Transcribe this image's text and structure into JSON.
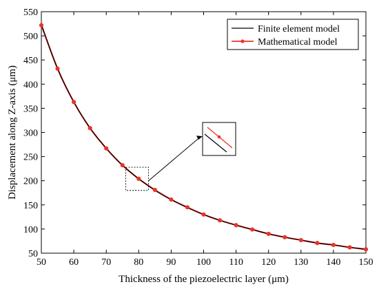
{
  "chart_data": {
    "type": "line",
    "xlabel": "Thickness of the piezoelectric layer (μm)",
    "ylabel": "Displacement along Z-axis (μm)",
    "xlim": [
      50,
      150
    ],
    "ylim": [
      50,
      550
    ],
    "xticks": [
      50,
      60,
      70,
      80,
      90,
      100,
      110,
      120,
      130,
      140,
      150
    ],
    "yticks": [
      50,
      100,
      150,
      200,
      250,
      300,
      350,
      400,
      450,
      500,
      550
    ],
    "grid": false,
    "legend_position": "top-right",
    "series": [
      {
        "name": "Finite element model",
        "color": "#000000",
        "marker": "none",
        "x": [
          50,
          55,
          60,
          65,
          70,
          75,
          80,
          85,
          90,
          95,
          100,
          105,
          110,
          115,
          120,
          125,
          130,
          135,
          140,
          145,
          150
        ],
        "values": [
          524,
          432,
          363,
          309,
          267,
          232,
          204,
          180,
          161,
          144,
          130,
          118,
          108,
          99,
          90,
          83,
          77,
          71,
          67,
          62,
          58
        ]
      },
      {
        "name": "Mathematical model",
        "color": "#e8342a",
        "marker": "circle",
        "x": [
          50,
          55,
          60,
          65,
          70,
          75,
          80,
          85,
          90,
          95,
          100,
          105,
          110,
          115,
          120,
          125,
          130,
          135,
          140,
          145,
          150
        ],
        "values": [
          522,
          432,
          363,
          309,
          267,
          232,
          204,
          181,
          161,
          145,
          130,
          118,
          108,
          99,
          90,
          83,
          77,
          71,
          67,
          62,
          58
        ]
      }
    ],
    "annotations": [
      {
        "type": "zoom-inset",
        "source_x_range": [
          76,
          83
        ],
        "source_y_range": [
          180,
          228
        ]
      }
    ]
  }
}
